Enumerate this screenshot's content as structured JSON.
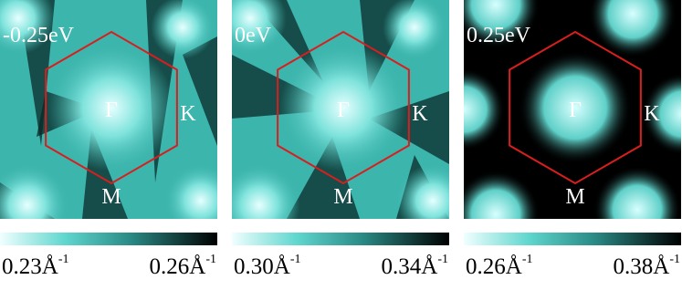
{
  "panels": [
    {
      "energy_label": "-0.25eV",
      "points": {
        "gamma": "Γ",
        "k": "K",
        "m": "M"
      },
      "colorbar": {
        "min": {
          "text": "0.23Å",
          "exponent": "-1"
        },
        "max": {
          "text": "0.26Å",
          "exponent": "-1"
        }
      }
    },
    {
      "energy_label": "0eV",
      "points": {
        "gamma": "Γ",
        "k": "K",
        "m": "M"
      },
      "colorbar": {
        "min": {
          "text": "0.30Å",
          "exponent": "-1"
        },
        "max": {
          "text": "0.34Å",
          "exponent": "-1"
        }
      }
    },
    {
      "energy_label": "0.25eV",
      "points": {
        "gamma": "Γ",
        "k": "K",
        "m": "M"
      },
      "colorbar": {
        "min": {
          "text": "0.26Å",
          "exponent": "-1"
        },
        "max": {
          "text": "0.38Å",
          "exponent": "-1"
        }
      }
    }
  ]
}
